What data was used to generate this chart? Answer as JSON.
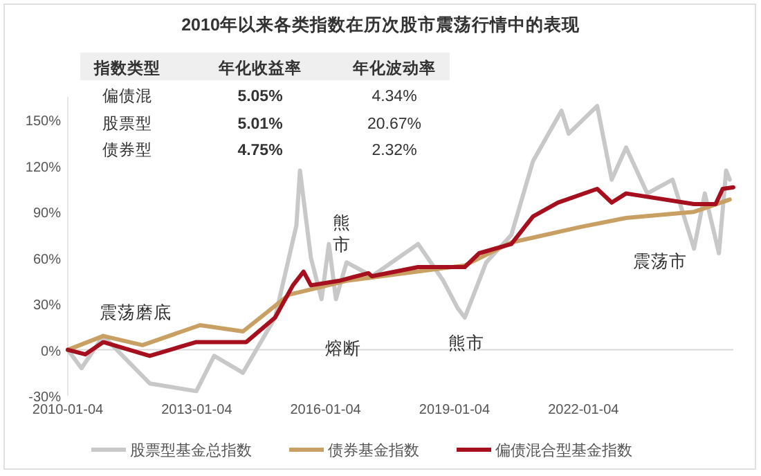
{
  "chart_data": {
    "type": "line",
    "title": "2010年以来各类指数在历次股市震荡行情中的表现",
    "annotations": [
      "震荡磨底",
      "熊市",
      "熔断",
      "熊市",
      "震荡市",
      "指数类型",
      "年化收益率",
      "年化波动率",
      "偏债混",
      "5.05%",
      "4.34%",
      "股票型",
      "5.01%",
      "20.67%",
      "债券型",
      "4.75%",
      "2.32%"
    ],
    "xlim": [
      "2010-01-04",
      "2025-07"
    ],
    "xticks": [
      "2010-01-04",
      "2013-01-04",
      "2016-01-04",
      "2019-01-04",
      "2022-01-04"
    ],
    "ylim": [
      -30,
      165
    ],
    "yticks": [
      {
        "value": -30,
        "label": "-30%"
      },
      {
        "value": 0,
        "label": "0%"
      },
      {
        "value": 30,
        "label": "30%"
      },
      {
        "value": 60,
        "label": "60%"
      },
      {
        "value": 90,
        "label": "90%"
      },
      {
        "value": 120,
        "label": "120%"
      },
      {
        "value": 150,
        "label": "150%"
      }
    ],
    "ref_lines": [
      {
        "axis": "y",
        "value": 0,
        "color": "#d9d9d9"
      }
    ],
    "legend": "bottom",
    "series": [
      {
        "name": "股票型基金总指数",
        "color": "#c8c8c8",
        "x": [
          "2010-01-04",
          "2010-05",
          "2010-11",
          "2011-12",
          "2013-01",
          "2013-06",
          "2014-02",
          "2014-11",
          "2015-05",
          "2015-06",
          "2015-09",
          "2015-12",
          "2016-02",
          "2016-04",
          "2016-07",
          "2017-02",
          "2018-03",
          "2018-10",
          "2019-02",
          "2019-04",
          "2019-10",
          "2020-05",
          "2020-11",
          "2021-07",
          "2021-09",
          "2022-05",
          "2022-09",
          "2023-01",
          "2023-07",
          "2024-02",
          "2024-08",
          "2024-11",
          "2025-03",
          "2025-05",
          "2025-06"
        ],
        "values": [
          0,
          -12,
          9,
          -22,
          -27,
          -4,
          -15,
          21,
          81,
          117,
          60,
          33,
          69,
          33,
          57,
          48,
          69,
          45,
          27,
          21,
          57,
          75,
          123,
          156,
          141,
          159,
          111,
          132,
          102,
          111,
          66,
          102,
          63,
          117,
          111
        ]
      },
      {
        "name": "债券基金指数",
        "color": "#c9a063",
        "x": [
          "2010-01-04",
          "2010-11",
          "2011-10",
          "2013-02",
          "2014-02",
          "2015-03",
          "2016-07",
          "2019-04",
          "2020-05",
          "2021-12",
          "2023-01",
          "2024-08",
          "2025-06"
        ],
        "values": [
          0,
          9,
          3,
          16,
          12,
          36,
          45,
          55,
          70,
          80,
          86,
          90,
          98
        ]
      },
      {
        "name": "偏债混合型基金指数",
        "color": "#a50f1e",
        "x": [
          "2010-01-04",
          "2010-06",
          "2010-11",
          "2011-12",
          "2013-01",
          "2014-03",
          "2014-11",
          "2015-04",
          "2015-07",
          "2015-09",
          "2016-05",
          "2017-01",
          "2017-02",
          "2018-03",
          "2019-04",
          "2019-08",
          "2020-05",
          "2020-11",
          "2021-06",
          "2022-05",
          "2022-09",
          "2023-01",
          "2024-08",
          "2025-02",
          "2025-04",
          "2025-07"
        ],
        "values": [
          0,
          -3,
          5,
          -4,
          5,
          5,
          21,
          42,
          51,
          42,
          45,
          50,
          48,
          54,
          54,
          63,
          69,
          87,
          96,
          105,
          96,
          102,
          95,
          95,
          105,
          106
        ]
      }
    ]
  }
}
